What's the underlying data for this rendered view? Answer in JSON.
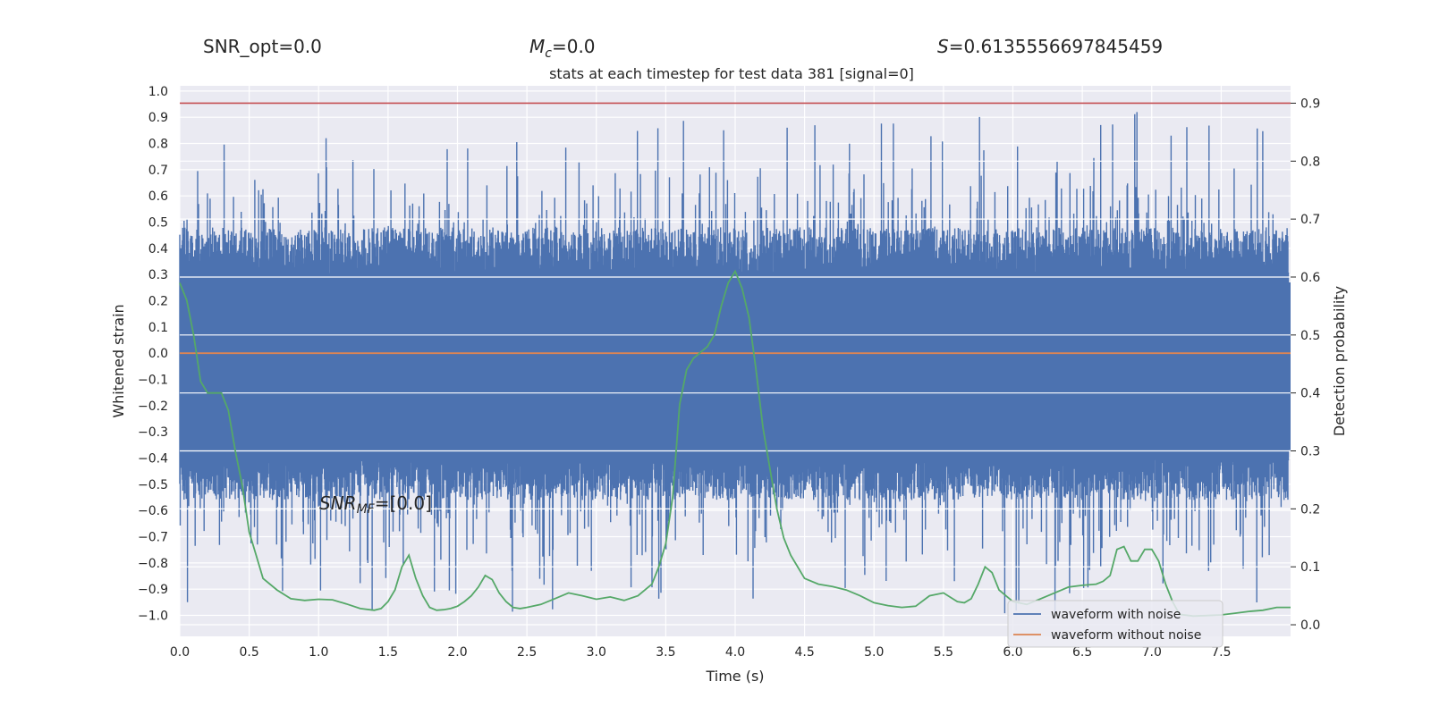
{
  "header": {
    "snr_opt": "SNR_opt=0.0",
    "mc_var": "M",
    "mc_sub": "c",
    "mc_val": "=0.0",
    "s_var": "S",
    "s_val": "=0.6135556697845459"
  },
  "chart_data": {
    "type": "line",
    "title": "stats at each timestep for test data 381 [signal=0]",
    "xlabel": "Time (s)",
    "ylabel_left": "Whitened strain",
    "ylabel_right": "Detection probability",
    "xlim": [
      0.0,
      8.0
    ],
    "ylim_left": [
      -1.08,
      1.02
    ],
    "ylim_right": [
      -0.02,
      0.93
    ],
    "x_ticks": [
      "0.0",
      "0.5",
      "1.0",
      "1.5",
      "2.0",
      "2.5",
      "3.0",
      "3.5",
      "4.0",
      "4.5",
      "5.0",
      "5.5",
      "6.0",
      "6.5",
      "7.0",
      "7.5"
    ],
    "y_left_ticks": [
      "1.0",
      "0.9",
      "0.8",
      "0.7",
      "0.6",
      "0.5",
      "0.4",
      "0.3",
      "0.2",
      "0.1",
      "0.0",
      "−0.1",
      "−0.2",
      "−0.3",
      "−0.4",
      "−0.5",
      "−0.6",
      "−0.7",
      "−0.8",
      "−0.9",
      "−1.0"
    ],
    "y_right_ticks": [
      "0.9",
      "0.8",
      "0.7",
      "0.6",
      "0.5",
      "0.4",
      "0.3",
      "0.2",
      "0.1",
      "0.0"
    ],
    "grid": true,
    "legend_position": "bottom-right",
    "annotation": {
      "var": "SNR",
      "sub": "MF",
      "text": "=[0.0]"
    },
    "threshold": {
      "axis": "right",
      "value": 0.9,
      "color": "#c44e52"
    },
    "series": [
      {
        "name": "waveform with noise",
        "axis": "left",
        "color": "#4c72b0",
        "kind": "noise",
        "envelope_typical": [
          -0.4,
          0.3
        ],
        "peak_max": 0.92,
        "peak_min": -1.0
      },
      {
        "name": "waveform without noise",
        "axis": "left",
        "color": "#dd8452",
        "kind": "flat",
        "value": 0.0
      },
      {
        "axis": "right",
        "color": "#55a868",
        "kind": "line",
        "x": [
          0.0,
          0.05,
          0.1,
          0.15,
          0.2,
          0.25,
          0.3,
          0.35,
          0.4,
          0.45,
          0.5,
          0.55,
          0.6,
          0.7,
          0.8,
          0.9,
          1.0,
          1.1,
          1.2,
          1.3,
          1.4,
          1.45,
          1.5,
          1.55,
          1.6,
          1.65,
          1.7,
          1.75,
          1.8,
          1.85,
          1.9,
          1.95,
          2.0,
          2.05,
          2.1,
          2.15,
          2.2,
          2.25,
          2.3,
          2.35,
          2.4,
          2.45,
          2.5,
          2.6,
          2.7,
          2.8,
          2.9,
          3.0,
          3.1,
          3.2,
          3.3,
          3.35,
          3.4,
          3.45,
          3.5,
          3.55,
          3.6,
          3.65,
          3.7,
          3.75,
          3.8,
          3.85,
          3.9,
          3.95,
          4.0,
          4.05,
          4.1,
          4.15,
          4.2,
          4.25,
          4.3,
          4.35,
          4.4,
          4.5,
          4.6,
          4.7,
          4.8,
          4.9,
          5.0,
          5.1,
          5.2,
          5.3,
          5.4,
          5.5,
          5.6,
          5.65,
          5.7,
          5.75,
          5.8,
          5.85,
          5.9,
          5.95,
          6.0,
          6.1,
          6.2,
          6.3,
          6.4,
          6.5,
          6.6,
          6.65,
          6.7,
          6.75,
          6.8,
          6.85,
          6.9,
          6.95,
          7.0,
          7.05,
          7.1,
          7.15,
          7.2,
          7.3,
          7.4,
          7.5,
          7.6,
          7.7,
          7.8,
          7.9,
          8.0
        ],
        "y": [
          0.59,
          0.56,
          0.5,
          0.42,
          0.4,
          0.4,
          0.4,
          0.37,
          0.3,
          0.24,
          0.16,
          0.12,
          0.08,
          0.06,
          0.045,
          0.042,
          0.044,
          0.043,
          0.036,
          0.028,
          0.025,
          0.028,
          0.04,
          0.06,
          0.1,
          0.12,
          0.08,
          0.05,
          0.03,
          0.025,
          0.026,
          0.028,
          0.032,
          0.04,
          0.05,
          0.065,
          0.085,
          0.078,
          0.055,
          0.04,
          0.03,
          0.028,
          0.03,
          0.035,
          0.045,
          0.055,
          0.05,
          0.044,
          0.048,
          0.042,
          0.05,
          0.06,
          0.07,
          0.1,
          0.14,
          0.22,
          0.38,
          0.44,
          0.46,
          0.47,
          0.48,
          0.5,
          0.55,
          0.59,
          0.61,
          0.58,
          0.53,
          0.44,
          0.34,
          0.27,
          0.2,
          0.15,
          0.12,
          0.08,
          0.07,
          0.066,
          0.06,
          0.05,
          0.038,
          0.033,
          0.03,
          0.032,
          0.05,
          0.055,
          0.04,
          0.038,
          0.045,
          0.07,
          0.1,
          0.09,
          0.06,
          0.05,
          0.04,
          0.035,
          0.045,
          0.055,
          0.065,
          0.068,
          0.07,
          0.075,
          0.085,
          0.13,
          0.135,
          0.11,
          0.11,
          0.13,
          0.13,
          0.11,
          0.07,
          0.04,
          0.018,
          0.015,
          0.016,
          0.017,
          0.02,
          0.023,
          0.025,
          0.03,
          0.03
        ]
      }
    ]
  }
}
